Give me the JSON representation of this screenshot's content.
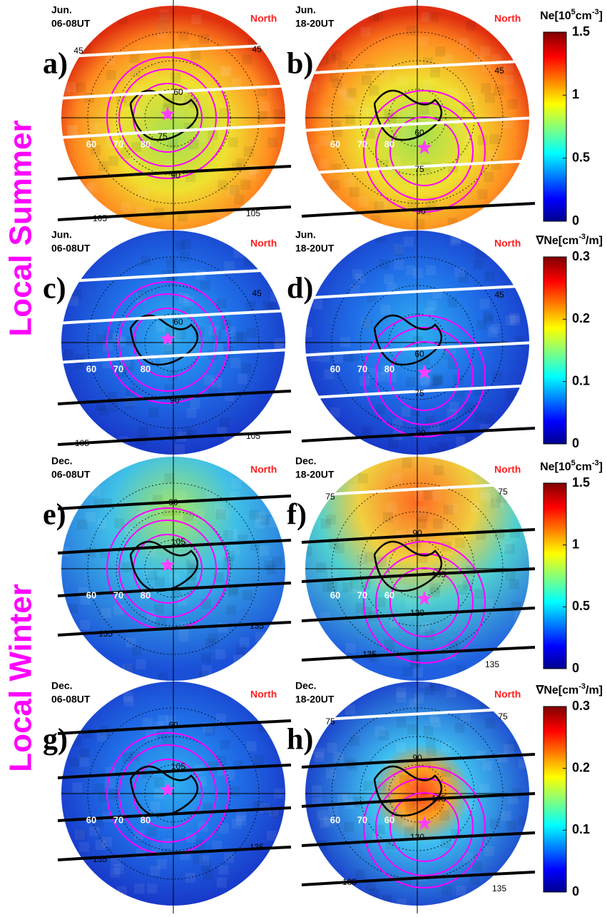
{
  "row_labels": [
    "Local Summer",
    "Local Winter"
  ],
  "panels": [
    {
      "label": "a)",
      "month": "Jun.",
      "time": "06-08UT",
      "north": "North",
      "lat_labels": [
        "60",
        "70",
        "80"
      ],
      "contour_labels": [
        "45",
        "45",
        "60",
        "75",
        "90",
        "105",
        "105"
      ]
    },
    {
      "label": "b)",
      "month": "Jun.",
      "time": "18-20UT",
      "north": "North",
      "lat_labels": [
        "60",
        "70",
        "80"
      ],
      "contour_labels": [
        "45",
        "60",
        "75",
        "90"
      ]
    },
    {
      "label": "c)",
      "month": "Jun.",
      "time": "06-08UT",
      "north": "North",
      "lat_labels": [
        "60",
        "70",
        "80"
      ],
      "contour_labels": [
        "45",
        "60",
        "90",
        "105",
        "105"
      ]
    },
    {
      "label": "d)",
      "month": "Jun.",
      "time": "18-20UT",
      "north": "North",
      "lat_labels": [
        "60",
        "70",
        "80"
      ],
      "contour_labels": [
        "45",
        "60",
        "75",
        "90"
      ]
    },
    {
      "label": "e)",
      "month": "Dec.",
      "time": "06-08UT",
      "north": "North",
      "lat_labels": [
        "60",
        "70",
        "80"
      ],
      "contour_labels": [
        "90",
        "105",
        "135",
        "135"
      ]
    },
    {
      "label": "f)",
      "month": "Dec.",
      "time": "18-20UT",
      "north": "North",
      "lat_labels": [
        "60",
        "70",
        "60"
      ],
      "contour_labels": [
        "75",
        "75",
        "90",
        "105",
        "120",
        "135",
        "135"
      ]
    },
    {
      "label": "g)",
      "month": "Dec.",
      "time": "06-08UT",
      "north": "North",
      "lat_labels": [
        "60",
        "70",
        "80"
      ],
      "contour_labels": [
        "60",
        "105",
        "135",
        "135"
      ]
    },
    {
      "label": "h)",
      "month": "Dec.",
      "time": "18-20UT",
      "north": "North",
      "lat_labels": [
        "60",
        "70",
        "60"
      ],
      "contour_labels": [
        "75",
        "75",
        "90",
        "105",
        "120",
        "135",
        "135"
      ]
    }
  ],
  "colorbars": [
    {
      "title_parts": [
        "Ne[10",
        "5",
        "cm",
        "-3",
        "]"
      ],
      "lim": [
        0,
        1.5
      ],
      "ticks": [
        0,
        0.5,
        1,
        1.5
      ]
    },
    {
      "title_parts": [
        "∇Ne[cm",
        "-3",
        "/m]"
      ],
      "lim": [
        0,
        0.3
      ],
      "ticks": [
        0,
        0.1,
        0.2,
        0.3
      ]
    },
    {
      "title_parts": [
        "Ne[10",
        "5",
        "cm",
        "-3",
        "]"
      ],
      "lim": [
        0,
        1.5
      ],
      "ticks": [
        0,
        0.5,
        1,
        1.5
      ]
    },
    {
      "title_parts": [
        "∇Ne[cm",
        "-3",
        "/m]"
      ],
      "lim": [
        0,
        0.3
      ],
      "ticks": [
        0,
        0.1,
        0.2,
        0.3
      ]
    }
  ]
}
